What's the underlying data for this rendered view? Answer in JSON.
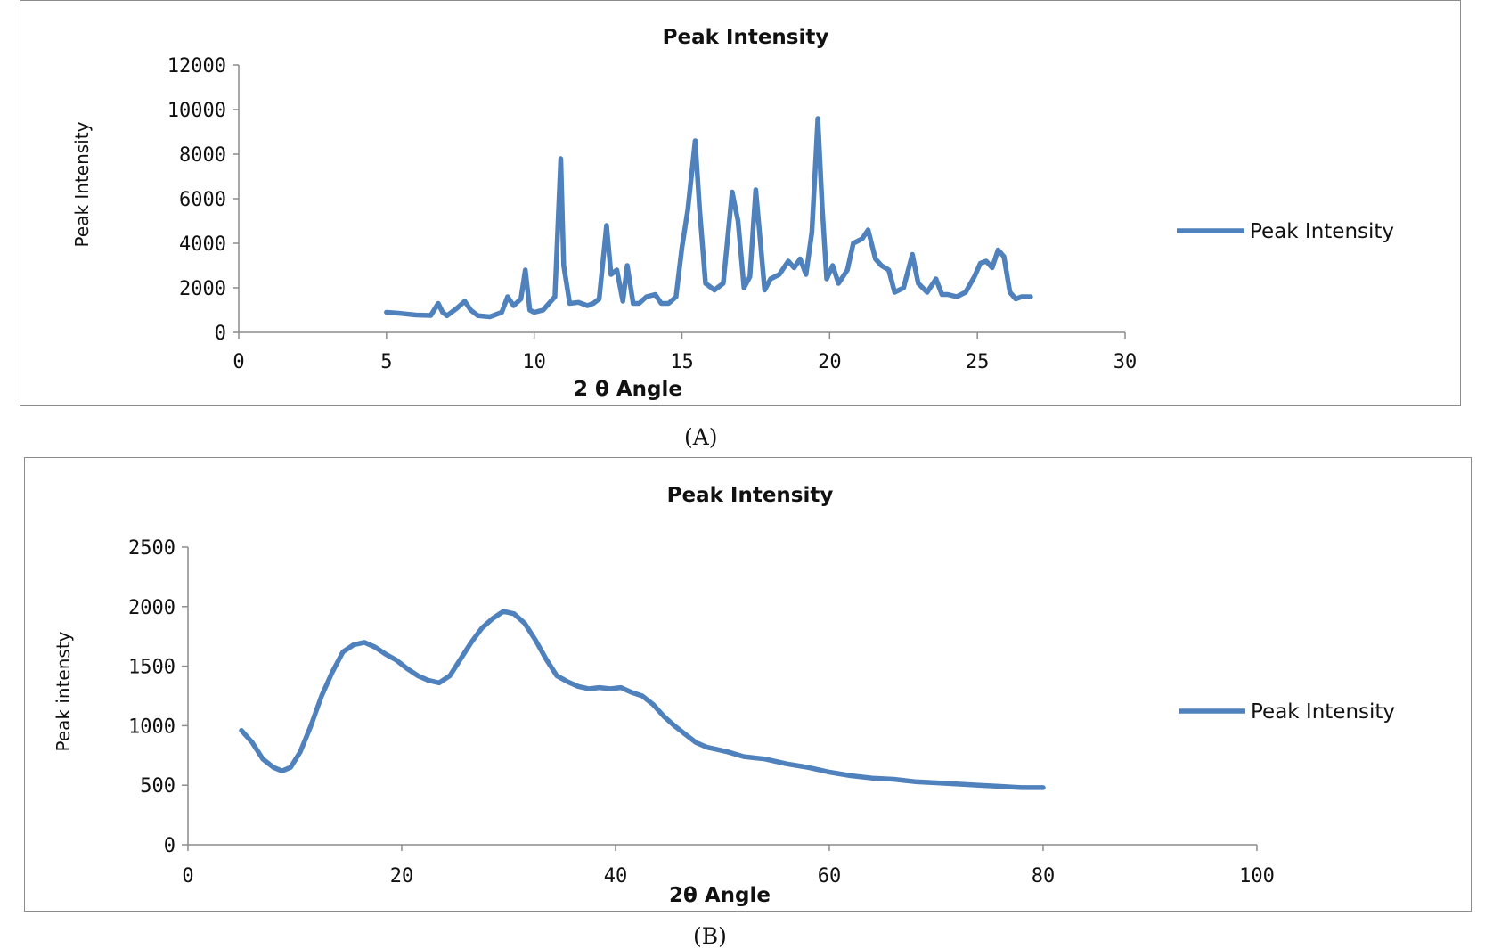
{
  "chart_data": [
    {
      "type": "line",
      "title": "Peak Intensity",
      "xlabel": "2 θ Angle",
      "ylabel": "Peak Intensity",
      "xlim": [
        0,
        30
      ],
      "ylim": [
        0,
        12000
      ],
      "x_ticks": [
        "0",
        "5",
        "10",
        "15",
        "20",
        "25",
        "30"
      ],
      "y_ticks": [
        "12000",
        "10000",
        "8000",
        "6000",
        "4000",
        "2000",
        "0"
      ],
      "legend": "right",
      "grid": false,
      "color": "#4f81bd",
      "series": [
        {
          "name": "Peak Intensity",
          "x": [
            5.0,
            5.5,
            6.0,
            6.5,
            6.75,
            6.9,
            7.05,
            7.4,
            7.65,
            7.85,
            8.1,
            8.5,
            8.9,
            9.1,
            9.3,
            9.55,
            9.7,
            9.85,
            10.0,
            10.3,
            10.7,
            10.9,
            11.0,
            11.2,
            11.5,
            11.8,
            12.0,
            12.2,
            12.45,
            12.6,
            12.8,
            13.0,
            13.15,
            13.35,
            13.55,
            13.8,
            14.1,
            14.3,
            14.55,
            14.8,
            15.0,
            15.2,
            15.45,
            15.6,
            15.8,
            16.1,
            16.4,
            16.7,
            16.9,
            17.1,
            17.3,
            17.5,
            17.8,
            18.0,
            18.3,
            18.6,
            18.8,
            19.0,
            19.2,
            19.4,
            19.6,
            19.75,
            19.9,
            20.1,
            20.3,
            20.6,
            20.8,
            21.1,
            21.3,
            21.55,
            21.75,
            22.0,
            22.2,
            22.5,
            22.8,
            23.0,
            23.3,
            23.6,
            23.8,
            24.0,
            24.3,
            24.6,
            24.9,
            25.1,
            25.3,
            25.5,
            25.7,
            25.9,
            26.1,
            26.3,
            26.5,
            26.8
          ],
          "values": [
            900,
            850,
            780,
            760,
            1300,
            900,
            750,
            1100,
            1400,
            1000,
            750,
            700,
            900,
            1600,
            1200,
            1500,
            2800,
            1000,
            900,
            1000,
            1600,
            7800,
            3000,
            1300,
            1350,
            1200,
            1300,
            1500,
            4800,
            2600,
            2800,
            1400,
            3000,
            1300,
            1300,
            1600,
            1700,
            1300,
            1300,
            1600,
            3800,
            5500,
            8600,
            5500,
            2200,
            1900,
            2200,
            6300,
            5000,
            2000,
            2500,
            6400,
            1900,
            2400,
            2600,
            3200,
            2900,
            3300,
            2600,
            4500,
            9600,
            5600,
            2400,
            3000,
            2200,
            2800,
            4000,
            4200,
            4600,
            3300,
            3000,
            2800,
            1800,
            2000,
            3500,
            2200,
            1800,
            2400,
            1700,
            1700,
            1600,
            1800,
            2500,
            3100,
            3200,
            2900,
            3700,
            3400,
            1800,
            1500,
            1600,
            1600
          ]
        }
      ]
    },
    {
      "type": "line",
      "title": "Peak Intensity",
      "xlabel": "2θ Angle",
      "ylabel": "Peak intensty",
      "xlim": [
        0,
        100
      ],
      "ylim": [
        0,
        2500
      ],
      "x_ticks": [
        "0",
        "20",
        "40",
        "60",
        "80",
        "100"
      ],
      "y_ticks": [
        "2500",
        "2000",
        "1500",
        "1000",
        "500",
        "0"
      ],
      "legend": "right",
      "grid": false,
      "color": "#4f81bd",
      "series": [
        {
          "name": "Peak Intensity",
          "x": [
            5,
            6,
            7,
            8,
            8.8,
            9.6,
            10.5,
            11.5,
            12.5,
            13.5,
            14.5,
            15.5,
            16.5,
            17.5,
            18.5,
            19.5,
            20.5,
            21.5,
            22.5,
            23.5,
            24.5,
            25.5,
            26.5,
            27.5,
            28.5,
            29.5,
            30.5,
            31.5,
            32.5,
            33.5,
            34.5,
            35.5,
            36.5,
            37.5,
            38.5,
            39.5,
            40.5,
            41.5,
            42.5,
            43.5,
            44.5,
            45.5,
            46.5,
            47.5,
            48.5,
            49.5,
            50.5,
            52,
            54,
            56,
            58,
            60,
            62,
            64,
            66,
            68,
            70,
            72,
            74,
            76,
            78,
            80
          ],
          "values": [
            960,
            860,
            720,
            650,
            620,
            650,
            780,
            1000,
            1250,
            1450,
            1620,
            1680,
            1700,
            1660,
            1600,
            1550,
            1480,
            1420,
            1380,
            1360,
            1420,
            1560,
            1700,
            1820,
            1900,
            1960,
            1940,
            1860,
            1720,
            1560,
            1420,
            1370,
            1330,
            1310,
            1320,
            1310,
            1320,
            1280,
            1250,
            1180,
            1080,
            1000,
            930,
            860,
            820,
            800,
            780,
            740,
            720,
            680,
            650,
            610,
            580,
            560,
            550,
            530,
            520,
            510,
            500,
            490,
            480,
            480
          ]
        }
      ]
    }
  ],
  "captions": [
    "(A)",
    "(B)"
  ]
}
